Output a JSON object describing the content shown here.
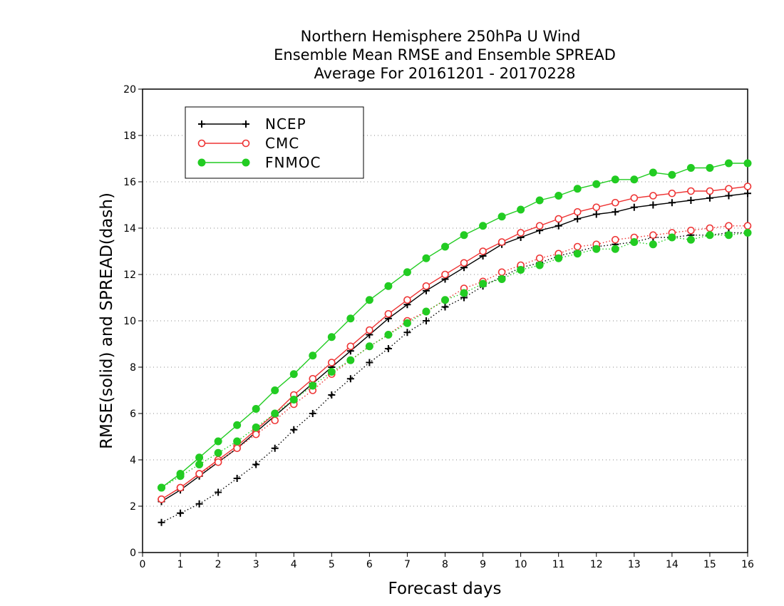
{
  "chart_data": {
    "type": "line",
    "title": [
      "Northern Hemisphere 250hPa U Wind",
      "Ensemble Mean RMSE and Ensemble SPREAD",
      "Average For 20161201 - 20170228"
    ],
    "xlabel": "Forecast days",
    "ylabel": "RMSE(solid) and SPREAD(dash)",
    "xlim": [
      0,
      16
    ],
    "ylim": [
      0,
      20
    ],
    "xticks": [
      0,
      1,
      2,
      3,
      4,
      5,
      6,
      7,
      8,
      9,
      10,
      11,
      12,
      13,
      14,
      15,
      16
    ],
    "yticks": [
      0,
      2,
      4,
      6,
      8,
      10,
      12,
      14,
      16,
      18,
      20
    ],
    "grid": "horizontal dotted",
    "legend_position": "top-left",
    "x": [
      0.5,
      1,
      1.5,
      2,
      2.5,
      3,
      3.5,
      4,
      4.5,
      5,
      5.5,
      6,
      6.5,
      7,
      7.5,
      8,
      8.5,
      9,
      9.5,
      10,
      10.5,
      11,
      11.5,
      12,
      12.5,
      13,
      13.5,
      14,
      14.5,
      15,
      15.5,
      16
    ],
    "series": [
      {
        "name": "NCEP",
        "metric": "RMSE",
        "style": "solid",
        "color": "#000000",
        "marker": "plus",
        "values": [
          2.2,
          2.7,
          3.3,
          3.9,
          4.5,
          5.2,
          5.9,
          6.6,
          7.3,
          8.0,
          8.7,
          9.4,
          10.1,
          10.7,
          11.3,
          11.8,
          12.3,
          12.8,
          13.3,
          13.6,
          13.9,
          14.1,
          14.4,
          14.6,
          14.7,
          14.9,
          15.0,
          15.1,
          15.2,
          15.3,
          15.4,
          15.5
        ]
      },
      {
        "name": "CMC",
        "metric": "RMSE",
        "style": "solid",
        "color": "#ee3333",
        "marker": "open-circle",
        "values": [
          2.3,
          2.8,
          3.4,
          4.0,
          4.6,
          5.3,
          6.0,
          6.8,
          7.5,
          8.2,
          8.9,
          9.6,
          10.3,
          10.9,
          11.5,
          12.0,
          12.5,
          13.0,
          13.4,
          13.8,
          14.1,
          14.4,
          14.7,
          14.9,
          15.1,
          15.3,
          15.4,
          15.5,
          15.6,
          15.6,
          15.7,
          15.8
        ]
      },
      {
        "name": "FNMOC",
        "metric": "RMSE",
        "style": "solid",
        "color": "#22cc22",
        "marker": "filled-circle",
        "values": [
          2.8,
          3.4,
          4.1,
          4.8,
          5.5,
          6.2,
          7.0,
          7.7,
          8.5,
          9.3,
          10.1,
          10.9,
          11.5,
          12.1,
          12.7,
          13.2,
          13.7,
          14.1,
          14.5,
          14.8,
          15.2,
          15.4,
          15.7,
          15.9,
          16.1,
          16.1,
          16.4,
          16.3,
          16.6,
          16.6,
          16.8,
          16.8
        ]
      },
      {
        "name": "NCEP",
        "metric": "SPREAD",
        "style": "dotted",
        "color": "#000000",
        "marker": "plus",
        "values": [
          1.3,
          1.7,
          2.1,
          2.6,
          3.2,
          3.8,
          4.5,
          5.3,
          6.0,
          6.8,
          7.5,
          8.2,
          8.8,
          9.5,
          10.0,
          10.6,
          11.0,
          11.5,
          11.9,
          12.3,
          12.5,
          12.8,
          13.0,
          13.2,
          13.3,
          13.4,
          13.6,
          13.6,
          13.7,
          13.7,
          13.8,
          13.8
        ]
      },
      {
        "name": "CMC",
        "metric": "SPREAD",
        "style": "dotted",
        "color": "#ee3333",
        "marker": "open-circle",
        "values": [
          2.3,
          2.8,
          3.4,
          3.9,
          4.5,
          5.1,
          5.7,
          6.4,
          7.0,
          7.7,
          8.3,
          8.9,
          9.4,
          10.0,
          10.4,
          10.9,
          11.4,
          11.7,
          12.1,
          12.4,
          12.7,
          12.9,
          13.2,
          13.3,
          13.5,
          13.6,
          13.7,
          13.8,
          13.9,
          14.0,
          14.1,
          14.1
        ]
      },
      {
        "name": "FNMOC",
        "metric": "SPREAD",
        "style": "dotted",
        "color": "#22cc22",
        "marker": "filled-circle",
        "values": [
          2.8,
          3.3,
          3.8,
          4.3,
          4.8,
          5.4,
          6.0,
          6.6,
          7.2,
          7.8,
          8.3,
          8.9,
          9.4,
          9.9,
          10.4,
          10.9,
          11.2,
          11.6,
          11.8,
          12.2,
          12.4,
          12.7,
          12.9,
          13.1,
          13.1,
          13.4,
          13.3,
          13.6,
          13.5,
          13.7,
          13.7,
          13.8
        ]
      }
    ],
    "legend": [
      {
        "label": "NCEP",
        "color": "#000000",
        "marker": "plus"
      },
      {
        "label": "CMC",
        "color": "#ee3333",
        "marker": "open-circle"
      },
      {
        "label": "FNMOC",
        "color": "#22cc22",
        "marker": "filled-circle"
      }
    ]
  }
}
